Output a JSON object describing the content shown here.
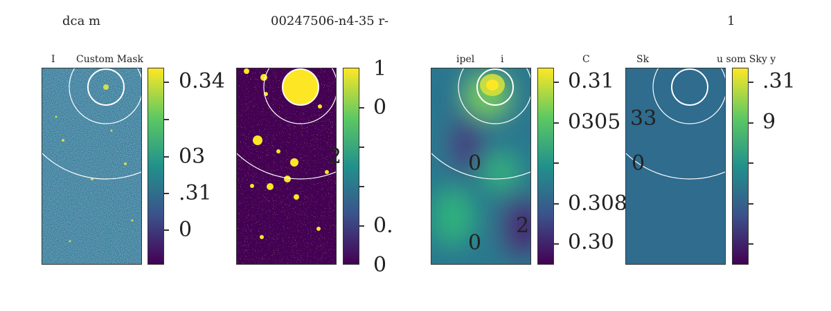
{
  "header": {
    "left": "dca     m",
    "center": "00247506-n4-35  r-",
    "right": "1"
  },
  "panels": [
    {
      "title_left": "I",
      "title_right": "Custom Mask",
      "colorbar_labels": [
        "0.34",
        "03",
        ".31",
        "0"
      ]
    },
    {
      "title": "",
      "colorbar_labels": [
        "1",
        "0",
        "0.",
        "0"
      ],
      "overlay_text": "2"
    },
    {
      "title_left": "ipel",
      "title_right": "i",
      "colorbar_labels": [
        "0.31",
        "0305",
        "0.3085",
        "0.30"
      ],
      "overlay_texts": [
        "0",
        "0",
        "2"
      ]
    },
    {
      "title_left": "C",
      "title_mid": "Sk",
      "title_right": "u   som Sky    y",
      "colorbar_labels": [
        ".31",
        "9"
      ],
      "overlay_texts": [
        "33",
        "0"
      ]
    }
  ],
  "colors": {
    "viridis_dark": "#440154",
    "viridis_mid": "#21918c",
    "viridis_bright": "#fde725",
    "sky_fill": "#2f6c8e",
    "circle": "#ffffff"
  }
}
